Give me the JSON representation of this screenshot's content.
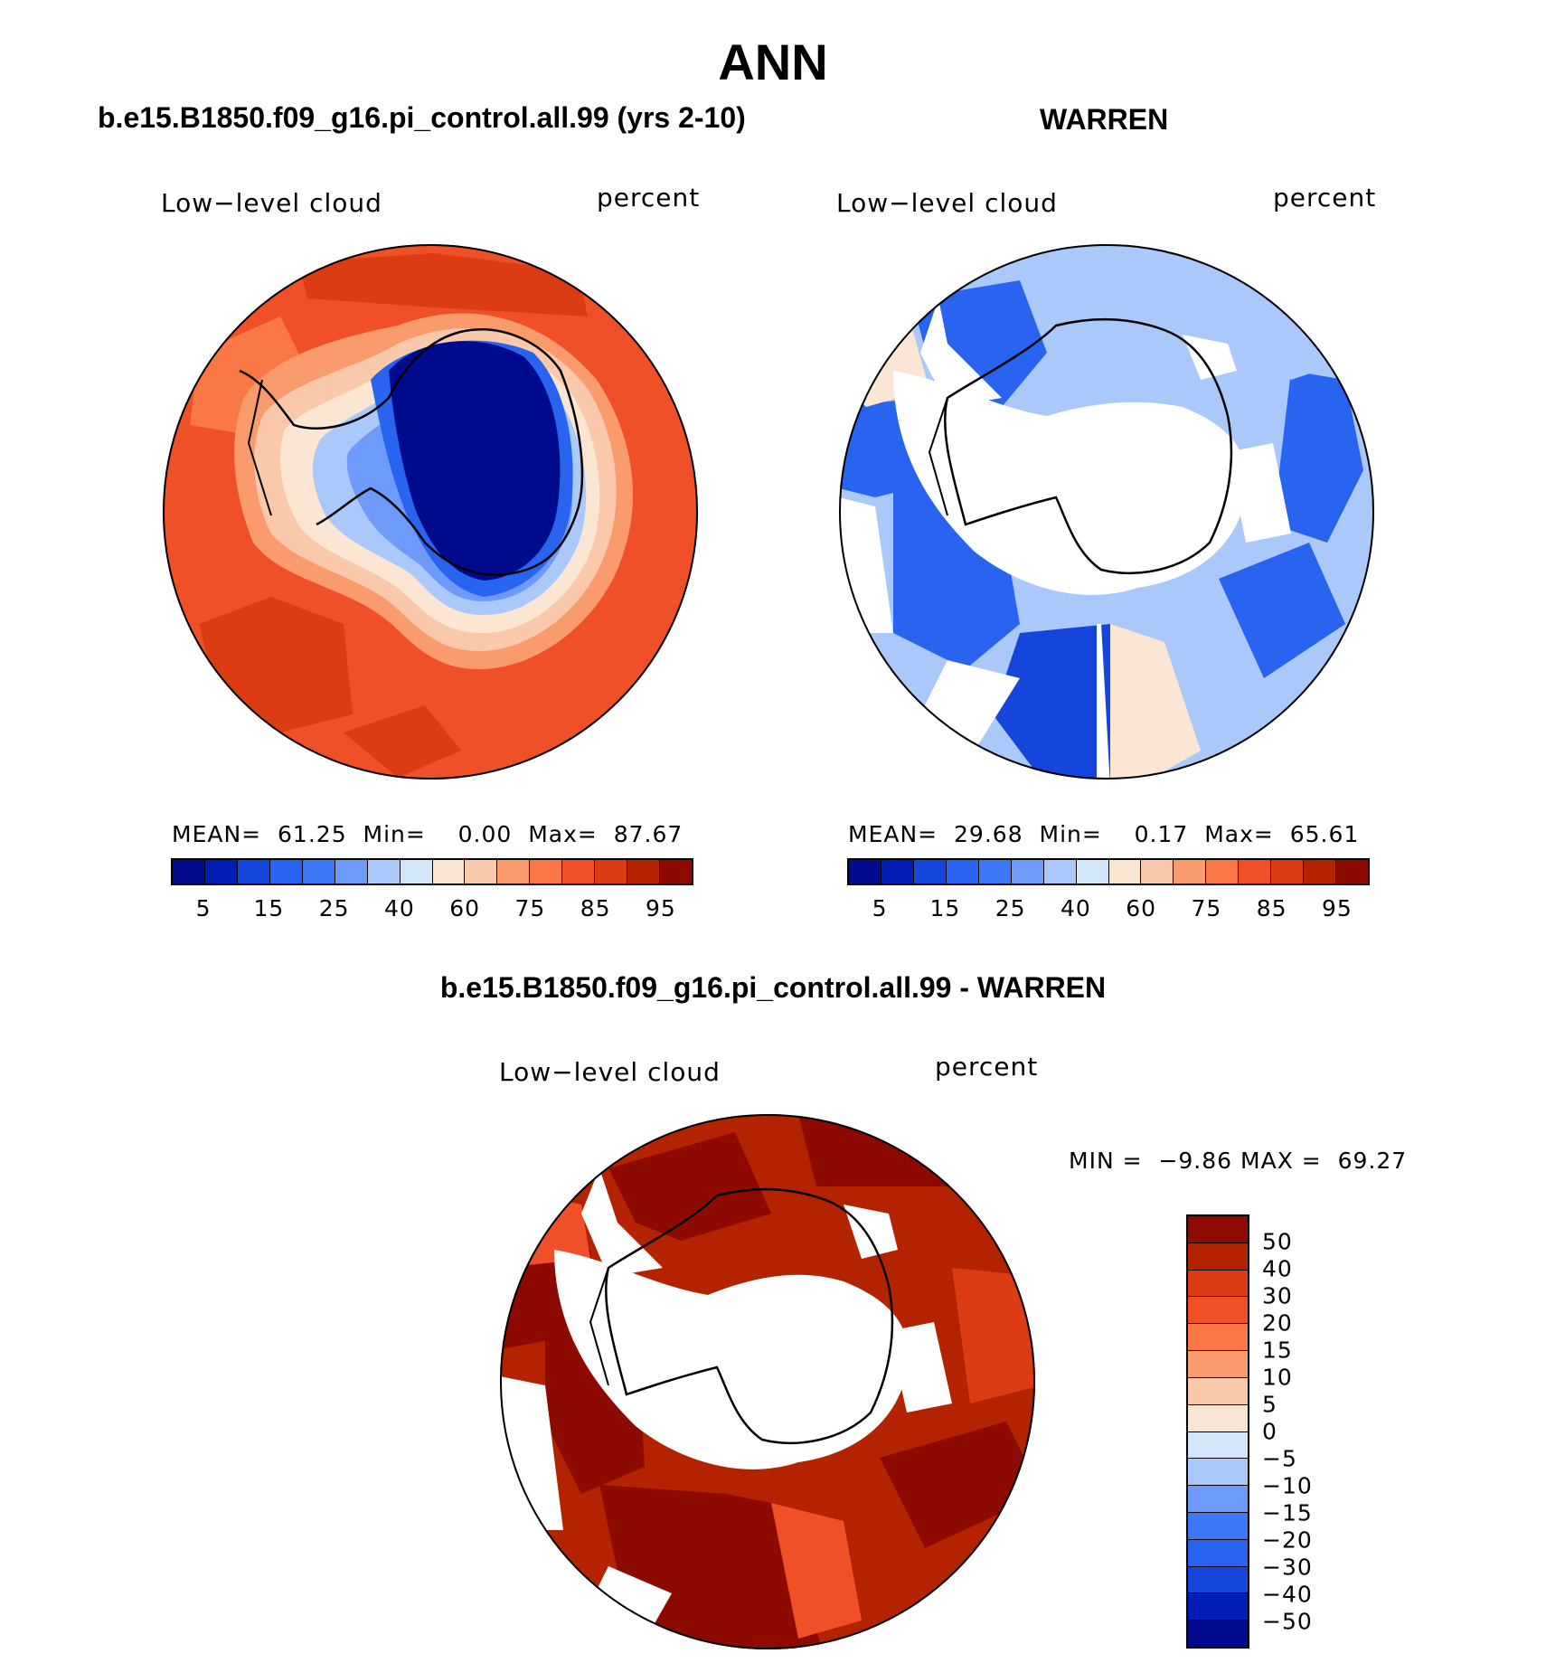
{
  "title": "ANN",
  "panels": {
    "model": {
      "subtitle": "b.e15.B1850.f09_g16.pi_control.all.99 (yrs 2-10)",
      "variable": "Low−level cloud",
      "units": "percent",
      "mean_label": "MEAN=",
      "mean": "61.25",
      "min_label": "Min=",
      "min": "0.00",
      "max_label": "Max=",
      "max": "87.67"
    },
    "obs": {
      "subtitle": "WARREN",
      "variable": "Low−level cloud",
      "units": "percent",
      "mean_label": "MEAN=",
      "mean": "29.68",
      "min_label": "Min=",
      "min": "0.17",
      "max_label": "Max=",
      "max": "65.61"
    },
    "diff": {
      "subtitle": "b.e15.B1850.f09_g16.pi_control.all.99 - WARREN",
      "variable": "Low−level cloud",
      "units": "percent",
      "min_label": "MIN =",
      "min": "−9.86",
      "max_label": "MAX =",
      "max": "69.27"
    }
  },
  "colorbar_abs": {
    "colors": [
      "#000a8c",
      "#001eb4",
      "#1446dc",
      "#2864f0",
      "#3c78f5",
      "#6e9bfa",
      "#aac8fa",
      "#d2e6fa",
      "#fae6d2",
      "#fac8aa",
      "#fa9b6e",
      "#fa7846",
      "#f05028",
      "#dc3c14",
      "#b42300",
      "#8c0a00"
    ],
    "tick_labels": [
      "5",
      "15",
      "25",
      "40",
      "60",
      "75",
      "85",
      "95"
    ]
  },
  "colorbar_diff": {
    "colors": [
      "#8c0a00",
      "#b42300",
      "#dc3c14",
      "#f05028",
      "#fa7846",
      "#fa9b6e",
      "#fac8aa",
      "#fae6d2",
      "#d2e6fa",
      "#aac8fa",
      "#6e9bfa",
      "#3c78f5",
      "#2864f0",
      "#1446dc",
      "#001eb4",
      "#000a8c"
    ],
    "tick_labels": [
      "50",
      "40",
      "30",
      "20",
      "15",
      "10",
      "5",
      "0",
      "−5",
      "−10",
      "−15",
      "−20",
      "−30",
      "−40",
      "−50"
    ]
  }
}
